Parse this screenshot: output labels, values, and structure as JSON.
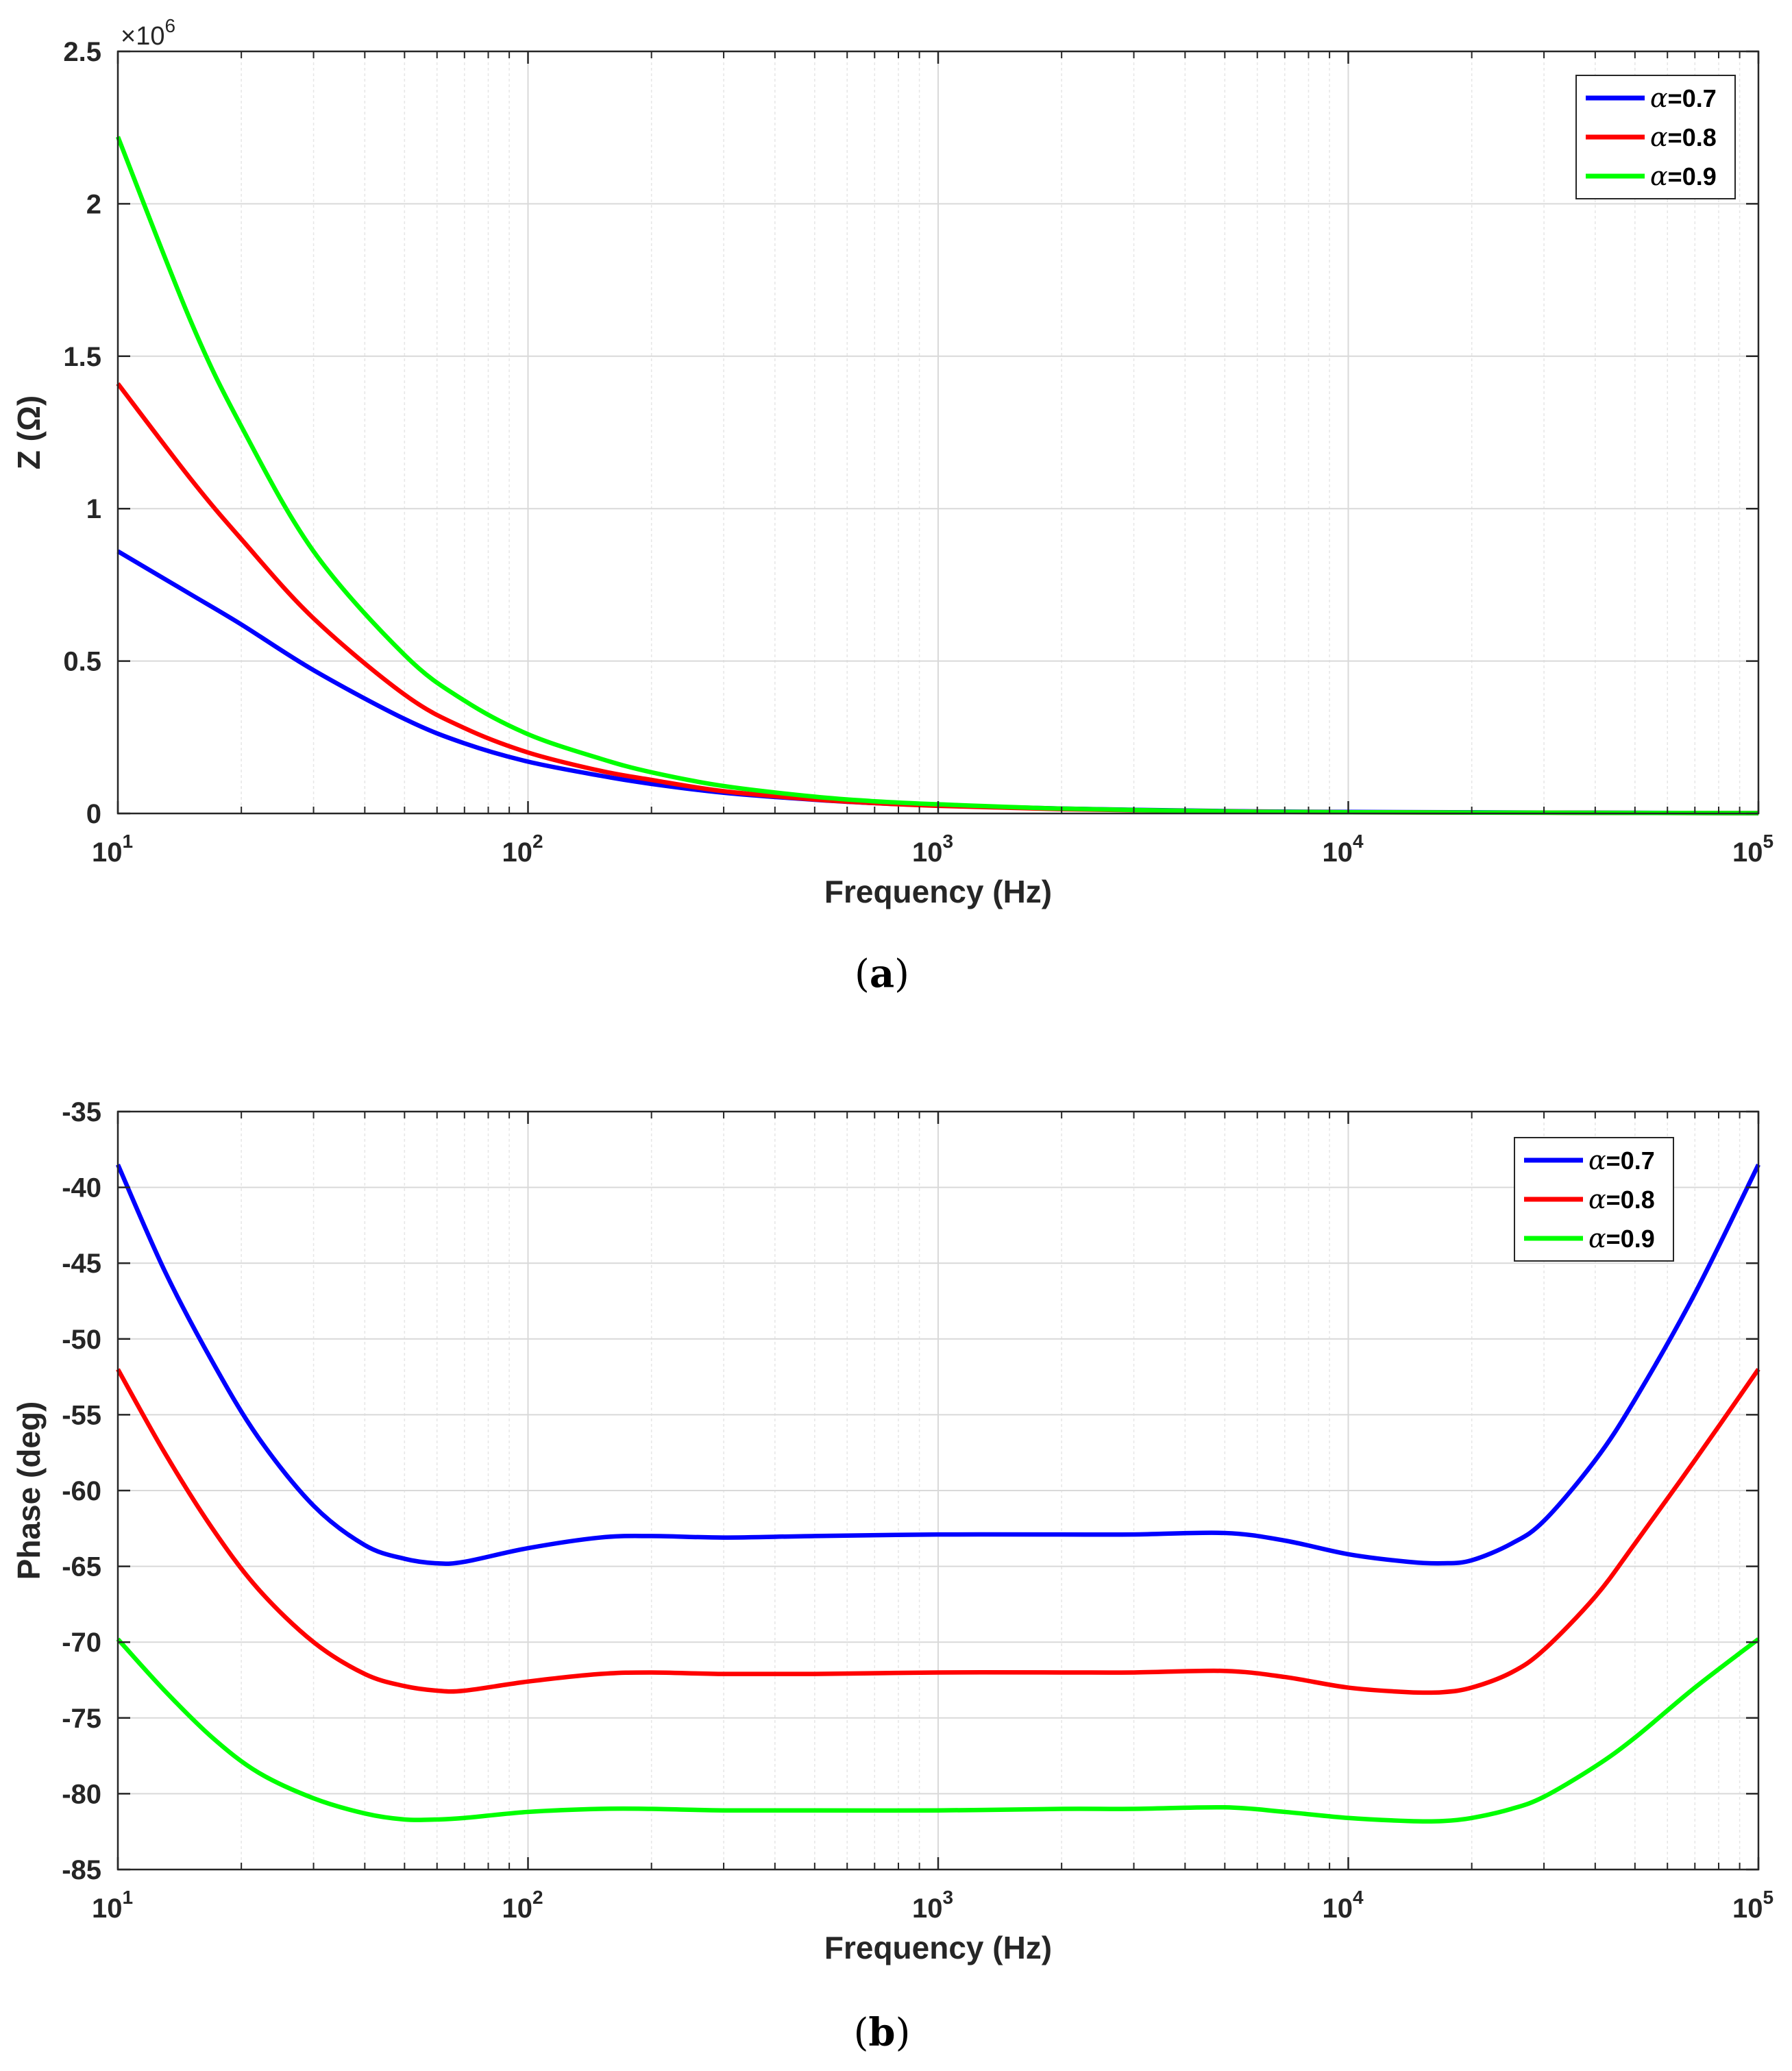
{
  "chart_data": [
    {
      "type": "line",
      "panel": "a",
      "caption": "a",
      "xscale": "log",
      "xlabel": "Frequency (Hz)",
      "ylabel": "Z (Ω)",
      "y_multiplier": "×10",
      "y_multiplier_exp": "6",
      "xlim": [
        10,
        100000
      ],
      "ylim": [
        0,
        2.5
      ],
      "xticks": [
        {
          "base": "10",
          "exp": "1"
        },
        {
          "base": "10",
          "exp": "2"
        },
        {
          "base": "10",
          "exp": "3"
        },
        {
          "base": "10",
          "exp": "4"
        },
        {
          "base": "10",
          "exp": "5"
        }
      ],
      "yticks": [
        "0",
        "0.5",
        "1",
        "1.5",
        "2",
        "2.5"
      ],
      "grid": true,
      "legend_position": "top-right",
      "x": [
        10,
        15,
        20,
        30,
        50,
        70,
        100,
        150,
        200,
        300,
        500,
        700,
        1000,
        2000,
        5000,
        10000,
        100000
      ],
      "series": [
        {
          "name": "0.7",
          "color": "#0000ff",
          "values": [
            0.86,
            0.72,
            0.62,
            0.47,
            0.31,
            0.23,
            0.17,
            0.124,
            0.097,
            0.068,
            0.045,
            0.034,
            0.026,
            0.016,
            0.008,
            0.005,
            0.001
          ]
        },
        {
          "name": "0.8",
          "color": "#ff0000",
          "values": [
            1.41,
            1.1,
            0.9,
            0.64,
            0.39,
            0.28,
            0.2,
            0.14,
            0.11,
            0.073,
            0.046,
            0.034,
            0.025,
            0.014,
            0.007,
            0.004,
            0.001
          ]
        },
        {
          "name": "0.9",
          "color": "#00ff00",
          "values": [
            2.22,
            1.62,
            1.27,
            0.86,
            0.52,
            0.37,
            0.26,
            0.18,
            0.135,
            0.09,
            0.055,
            0.04,
            0.03,
            0.016,
            0.007,
            0.004,
            0.001
          ]
        }
      ]
    },
    {
      "type": "line",
      "panel": "b",
      "caption": "b",
      "xscale": "log",
      "xlabel": "Frequency (Hz)",
      "ylabel": "Phase (deg)",
      "xlim": [
        10,
        100000
      ],
      "ylim": [
        -85,
        -35
      ],
      "xticks": [
        {
          "base": "10",
          "exp": "1"
        },
        {
          "base": "10",
          "exp": "2"
        },
        {
          "base": "10",
          "exp": "3"
        },
        {
          "base": "10",
          "exp": "4"
        },
        {
          "base": "10",
          "exp": "5"
        }
      ],
      "yticks": [
        "-85",
        "-80",
        "-75",
        "-70",
        "-65",
        "-60",
        "-55",
        "-50",
        "-45",
        "-40",
        "-35"
      ],
      "grid": true,
      "legend_position": "top-right",
      "x": [
        10,
        13,
        17,
        22,
        30,
        40,
        50,
        60,
        70,
        100,
        150,
        200,
        300,
        500,
        1000,
        2000,
        3000,
        5000,
        7000,
        10000,
        14000,
        17000,
        20000,
        25000,
        30000,
        40000,
        50000,
        70000,
        100000
      ],
      "series": [
        {
          "name": "0.7",
          "color": "#0000ff",
          "values": [
            -38.5,
            -45.5,
            -51.5,
            -56.5,
            -61,
            -63.6,
            -64.5,
            -64.8,
            -64.7,
            -63.8,
            -63.1,
            -63.0,
            -63.1,
            -63.0,
            -62.9,
            -62.9,
            -62.9,
            -62.8,
            -63.3,
            -64.2,
            -64.7,
            -64.8,
            -64.6,
            -63.5,
            -62,
            -58,
            -54,
            -47,
            -38.5
          ]
        },
        {
          "name": "0.8",
          "color": "#ff0000",
          "values": [
            -52,
            -57.5,
            -62.5,
            -66.5,
            -70,
            -72.1,
            -72.9,
            -73.2,
            -73.2,
            -72.6,
            -72.1,
            -72.0,
            -72.1,
            -72.1,
            -72.0,
            -72.0,
            -72.0,
            -71.9,
            -72.3,
            -73.0,
            -73.3,
            -73.3,
            -73,
            -72,
            -70.5,
            -67,
            -63.5,
            -58,
            -52
          ]
        },
        {
          "name": "0.9",
          "color": "#00ff00",
          "values": [
            -69.8,
            -73.2,
            -76.3,
            -78.6,
            -80.3,
            -81.3,
            -81.7,
            -81.7,
            -81.6,
            -81.2,
            -81.0,
            -81.0,
            -81.1,
            -81.1,
            -81.1,
            -81.0,
            -81.0,
            -80.9,
            -81.2,
            -81.6,
            -81.8,
            -81.8,
            -81.6,
            -81,
            -80.2,
            -78.2,
            -76.3,
            -73,
            -69.8
          ]
        }
      ]
    }
  ]
}
